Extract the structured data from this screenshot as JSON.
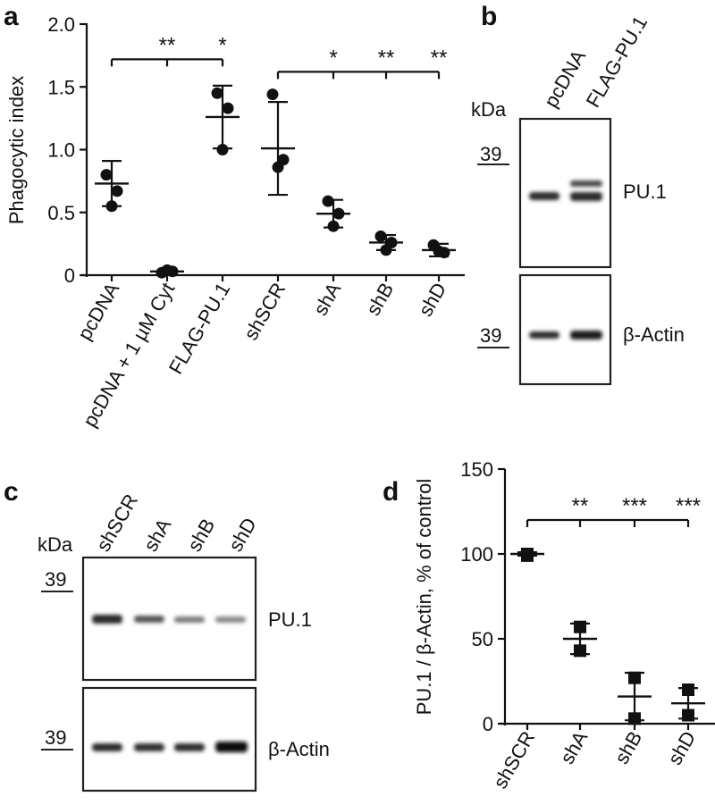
{
  "chart_data": [
    {
      "panel": "a",
      "type": "scatter",
      "xlabel": "",
      "ylabel": "Phagocytic index",
      "ylim": [
        0,
        2.0
      ],
      "yticks": [
        "0",
        "0.5",
        "1.0",
        "1.5",
        "2.0"
      ],
      "categories": [
        "pcDNA",
        "pcDNA + 1 µM Cyt",
        "FLAG-PU.1",
        "shSCR",
        "shA",
        "shB",
        "shD"
      ],
      "series": [
        {
          "points": [
            [
              0.8,
              0.67,
              0.55
            ],
            [
              0.02,
              0.03,
              0.04
            ],
            [
              1.45,
              1.33,
              1.0
            ],
            [
              1.44,
              0.92,
              0.86
            ],
            [
              0.59,
              0.49,
              0.39
            ],
            [
              0.31,
              0.26,
              0.2
            ],
            [
              0.24,
              0.18,
              0.19
            ]
          ],
          "mean": [
            0.73,
            0.03,
            1.26,
            1.01,
            0.49,
            0.26,
            0.2
          ],
          "sd": [
            0.18,
            0.01,
            0.25,
            0.37,
            0.11,
            0.06,
            0.05
          ]
        }
      ],
      "significance": [
        {
          "group": "pcDNA bracket",
          "label": "**",
          "target": "pcDNA + 1 µM Cyt"
        },
        {
          "group": "pcDNA bracket",
          "label": "*",
          "target": "FLAG-PU.1"
        },
        {
          "group": "shSCR bracket",
          "label": "*",
          "target": "shA"
        },
        {
          "group": "shSCR bracket",
          "label": "**",
          "target": "shB"
        },
        {
          "group": "shSCR bracket",
          "label": "**",
          "target": "shD"
        }
      ]
    },
    {
      "panel": "d",
      "type": "scatter",
      "xlabel": "",
      "ylabel": "PU.1 / β-Actin, % of control",
      "ylim": [
        0,
        150
      ],
      "yticks": [
        "0",
        "50",
        "100",
        "150"
      ],
      "categories": [
        "shSCR",
        "shA",
        "shB",
        "shD"
      ],
      "series": [
        {
          "points": [
            [
              100,
              99
            ],
            [
              57,
              43
            ],
            [
              27,
              3
            ],
            [
              20,
              5
            ]
          ],
          "mean": [
            100,
            50,
            16,
            12
          ],
          "sd": [
            1,
            9,
            14,
            9
          ]
        }
      ],
      "significance": [
        {
          "label": "**",
          "target": "shA"
        },
        {
          "label": "***",
          "target": "shB"
        },
        {
          "label": "***",
          "target": "shD"
        }
      ]
    }
  ],
  "labels": {
    "a": "a",
    "b": "b",
    "c": "c",
    "d": "d"
  },
  "blot_b": {
    "kda": "kDa",
    "lanes": [
      "pcDNA",
      "FLAG-PU.1"
    ],
    "marker": "39",
    "protein_top": "PU.1",
    "protein_bottom": "β-Actin"
  },
  "blot_c": {
    "kda": "kDa",
    "lanes": [
      "shSCR",
      "shA",
      "shB",
      "shD"
    ],
    "marker": "39",
    "protein_top": "PU.1",
    "protein_bottom": "β-Actin"
  }
}
